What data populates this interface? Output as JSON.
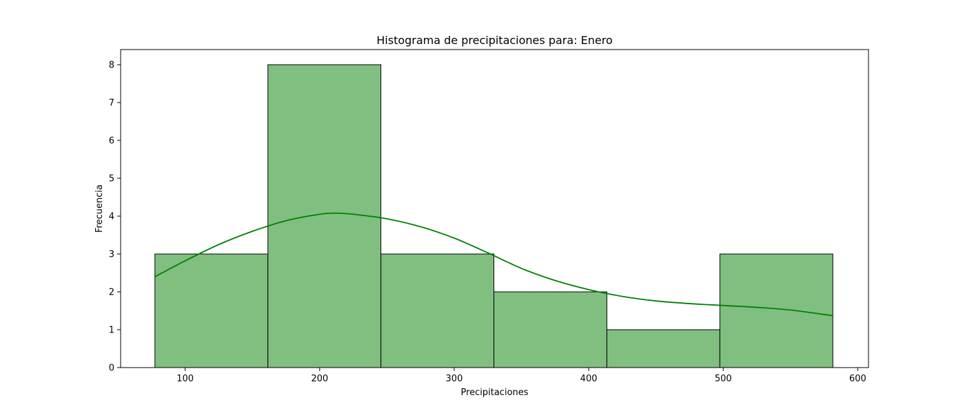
{
  "chart_data": {
    "type": "bar",
    "title": "Histograma de precipitaciones para: Enero",
    "xlabel": "Precipitaciones",
    "ylabel": "Frecuencia",
    "xlim": [
      52,
      608
    ],
    "ylim": [
      0,
      8.4
    ],
    "xticks": [
      100,
      200,
      300,
      400,
      500,
      600
    ],
    "yticks": [
      0,
      1,
      2,
      3,
      4,
      5,
      6,
      7,
      8
    ],
    "bins": [
      {
        "x0": 77.5,
        "x1": 161.5,
        "count": 3
      },
      {
        "x0": 161.5,
        "x1": 245.5,
        "count": 8
      },
      {
        "x0": 245.5,
        "x1": 329.5,
        "count": 3
      },
      {
        "x0": 329.5,
        "x1": 413.5,
        "count": 2
      },
      {
        "x0": 413.5,
        "x1": 497.5,
        "count": 1
      },
      {
        "x0": 497.5,
        "x1": 581.5,
        "count": 3
      }
    ],
    "kde": {
      "x": [
        77.5,
        100,
        125,
        150,
        175,
        200,
        212,
        225,
        250,
        275,
        300,
        325,
        350,
        375,
        400,
        425,
        450,
        475,
        500,
        525,
        550,
        581.5
      ],
      "y": [
        2.4,
        2.82,
        3.25,
        3.6,
        3.88,
        4.05,
        4.08,
        4.05,
        3.93,
        3.72,
        3.42,
        3.03,
        2.62,
        2.3,
        2.06,
        1.88,
        1.76,
        1.69,
        1.64,
        1.59,
        1.52,
        1.37
      ]
    },
    "bar_color": "#80bf80",
    "bar_edge": "#000000",
    "kde_color": "#008000",
    "grid": false,
    "legend": null
  }
}
